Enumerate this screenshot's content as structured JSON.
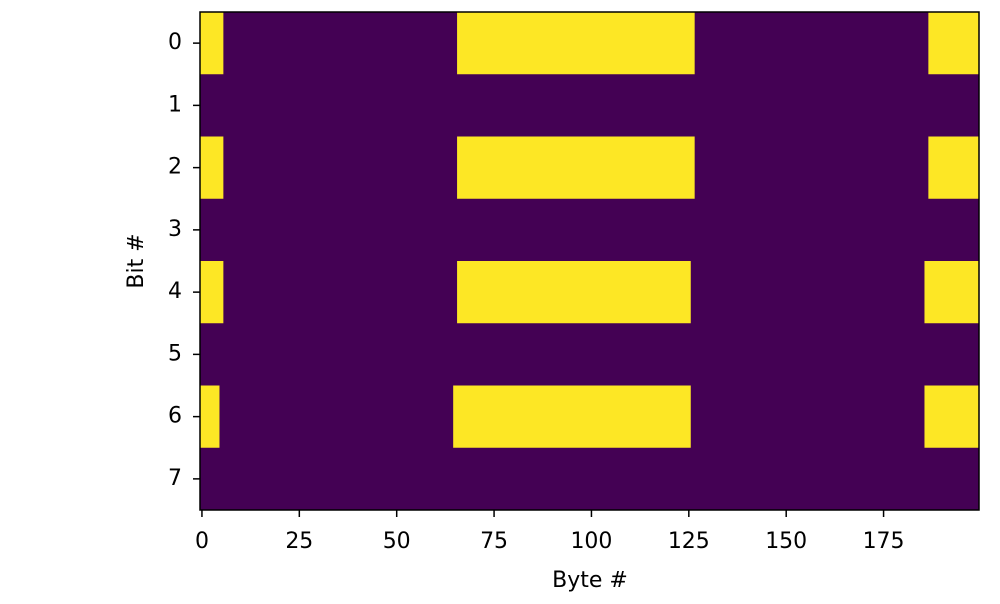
{
  "chart_data": {
    "type": "heatmap",
    "xlabel": "Byte #",
    "ylabel": "Bit #",
    "xlim": [
      -0.5,
      199.5
    ],
    "ylim": [
      7.5,
      -0.5
    ],
    "xticks": [
      0,
      25,
      50,
      75,
      100,
      125,
      150,
      175
    ],
    "yticks": [
      0,
      1,
      2,
      3,
      4,
      5,
      6,
      7
    ],
    "low_color": "#440154",
    "high_color": "#fde725",
    "spans": [
      {
        "row": 0,
        "x": [
          -0.5,
          5.5
        ]
      },
      {
        "row": 0,
        "x": [
          65.5,
          126.5
        ]
      },
      {
        "row": 0,
        "x": [
          186.5,
          199.5
        ]
      },
      {
        "row": 2,
        "x": [
          -0.5,
          5.5
        ]
      },
      {
        "row": 2,
        "x": [
          65.5,
          126.5
        ]
      },
      {
        "row": 2,
        "x": [
          186.5,
          199.5
        ]
      },
      {
        "row": 4,
        "x": [
          -0.5,
          5.5
        ]
      },
      {
        "row": 4,
        "x": [
          65.5,
          125.5
        ]
      },
      {
        "row": 4,
        "x": [
          185.5,
          199.5
        ]
      },
      {
        "row": 6,
        "x": [
          -0.5,
          4.5
        ]
      },
      {
        "row": 6,
        "x": [
          64.5,
          125.5
        ]
      },
      {
        "row": 6,
        "x": [
          185.5,
          199.5
        ]
      }
    ]
  }
}
